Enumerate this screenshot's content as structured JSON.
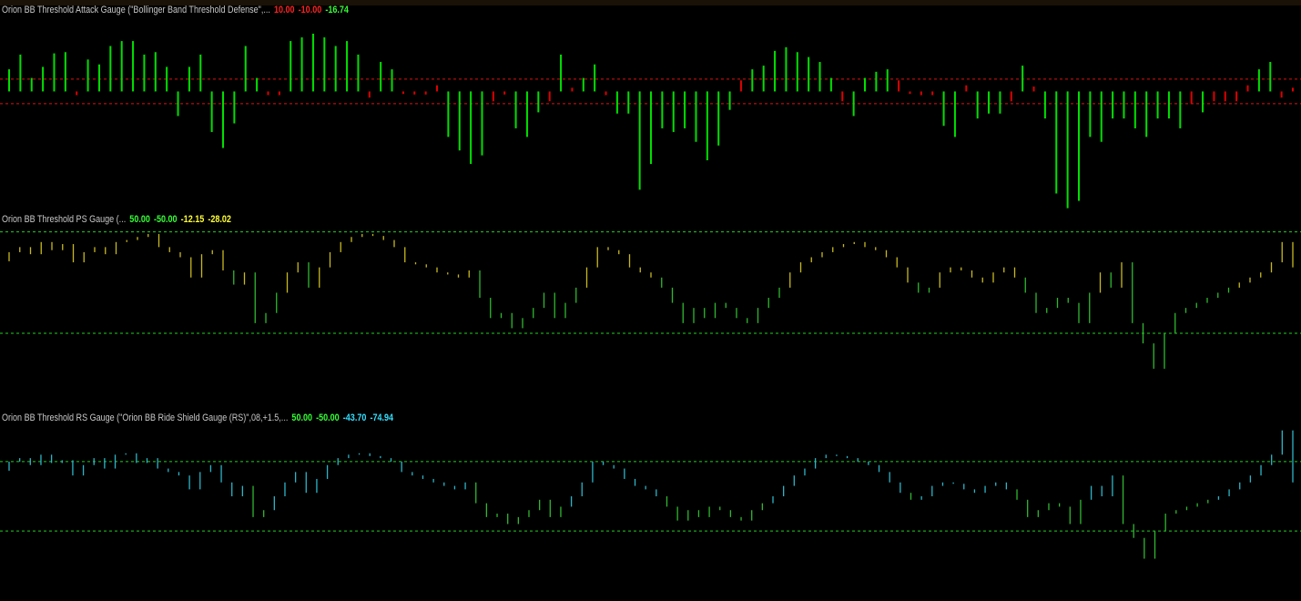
{
  "chart_data": [
    {
      "type": "bar",
      "title": "Orion BB Threshold Attack Gauge (\"Bollinger Band Threshold Defense\",...",
      "readouts": [
        {
          "label": "10.00",
          "color": "#ff2020"
        },
        {
          "label": "-10.00",
          "color": "#ff2020"
        },
        {
          "label": "-16.74",
          "color": "#33ff33"
        }
      ],
      "levels": [
        {
          "value": 10,
          "color": "#e01010"
        },
        {
          "value": -10,
          "color": "#e01010"
        }
      ],
      "color": "#00e000",
      "alt_color": "#e00000",
      "ylim": [
        -96,
        67
      ],
      "values": [
        18,
        30,
        11,
        20,
        31,
        32,
        -3,
        26,
        22,
        37,
        41,
        41,
        30,
        32,
        20,
        -20,
        20,
        30,
        -33,
        -46,
        -26,
        37,
        11,
        -3,
        -3,
        41,
        44,
        47,
        44,
        37,
        41,
        30,
        -5,
        24,
        18,
        -2,
        -1,
        -1,
        5,
        -37,
        -48,
        -59,
        -52,
        -8,
        -1,
        -30,
        -37,
        -17,
        -8,
        30,
        3,
        11,
        22,
        -3,
        -18,
        -18,
        -80,
        -59,
        -30,
        -33,
        -30,
        -41,
        -56,
        -44,
        -15,
        9,
        18,
        21,
        33,
        36,
        32,
        28,
        24,
        11,
        -8,
        -20,
        11,
        16,
        18,
        9,
        -2,
        -3,
        -3,
        -28,
        -37,
        5,
        -22,
        -18,
        -18,
        -8,
        21,
        4,
        -22,
        -83,
        -95,
        -89,
        -37,
        -41,
        -22,
        -22,
        -30,
        -37,
        -22,
        -22,
        -30,
        -10,
        -17,
        -8,
        -8,
        -8,
        5,
        18,
        24,
        -5,
        3
      ]
    },
    {
      "type": "segment",
      "title": "Orion BB Threshold PS Gauge (...",
      "readouts": [
        {
          "label": "50.00",
          "color": "#33ff33"
        },
        {
          "label": "-50.00",
          "color": "#33ff33"
        },
        {
          "label": "-12.15",
          "color": "#ffff33"
        },
        {
          "label": "-28.02",
          "color": "#ffff33"
        }
      ],
      "levels": [
        {
          "value": 50,
          "color": "#20d020"
        },
        {
          "value": -50,
          "color": "#20d020"
        }
      ],
      "color": "#c8b820",
      "alt_color": "#2fb82f",
      "ylim": [
        -121,
        56
      ],
      "values": [
        30,
        35,
        28,
        40,
        32,
        38,
        20,
        30,
        35,
        28,
        40,
        42,
        45,
        48,
        35,
        30,
        25,
        5,
        28,
        32,
        12,
        -2,
        10,
        -40,
        -30,
        -10,
        10,
        20,
        -5,
        15,
        30,
        40,
        45,
        48,
        46,
        42,
        35,
        20,
        18,
        15,
        10,
        8,
        5,
        12,
        -15,
        -35,
        -30,
        -45,
        -35,
        -25,
        -10,
        -35,
        -20,
        -5,
        15,
        35,
        32,
        28,
        15,
        10,
        5,
        -5,
        -20,
        -40,
        -25,
        -35,
        -20,
        -25,
        -35,
        -40,
        -25,
        -15,
        -5,
        10,
        20,
        25,
        30,
        35,
        38,
        40,
        35,
        32,
        25,
        15,
        0,
        -10,
        -5,
        10,
        15,
        12,
        5,
        0,
        10,
        15,
        5,
        -10,
        -30,
        -25,
        -15,
        -20,
        -40,
        -10,
        10,
        -5,
        20,
        -40,
        -60,
        -85,
        -50,
        -30,
        -25,
        -20,
        -15,
        -10,
        -5,
        0,
        5,
        10,
        20,
        40,
        15
      ]
    },
    {
      "type": "segment",
      "title": "Orion BB Threshold RS Gauge (\"Orion BB Ride Shield Gauge (RS)\",08,+1.5,...",
      "readouts": [
        {
          "label": "50.00",
          "color": "#33ff33"
        },
        {
          "label": "-50.00",
          "color": "#33ff33"
        },
        {
          "label": "-43.70",
          "color": "#33e0ff"
        },
        {
          "label": "-74.94",
          "color": "#33e0ff"
        }
      ],
      "levels": [
        {
          "value": 50,
          "color": "#20d020"
        },
        {
          "value": -50,
          "color": "#20d020"
        }
      ],
      "color": "#2bb5c8",
      "alt_color": "#2fb82f",
      "ylim": [
        -151,
        109
      ],
      "values": [
        50,
        55,
        45,
        60,
        48,
        52,
        30,
        45,
        55,
        40,
        60,
        62,
        48,
        55,
        40,
        35,
        30,
        10,
        35,
        45,
        20,
        0,
        15,
        -30,
        -20,
        0,
        20,
        35,
        5,
        25,
        45,
        55,
        60,
        62,
        58,
        55,
        50,
        35,
        30,
        25,
        20,
        15,
        10,
        20,
        -10,
        -30,
        -25,
        -40,
        -30,
        -20,
        -5,
        -30,
        -15,
        0,
        20,
        50,
        45,
        40,
        25,
        15,
        10,
        0,
        -15,
        -35,
        -20,
        -30,
        -15,
        -20,
        -30,
        -35,
        -20,
        -10,
        0,
        15,
        30,
        40,
        55,
        60,
        58,
        55,
        50,
        45,
        35,
        20,
        5,
        -5,
        0,
        15,
        20,
        18,
        10,
        5,
        15,
        20,
        10,
        -5,
        -30,
        -20,
        -10,
        -15,
        -40,
        -5,
        15,
        0,
        30,
        -40,
        -60,
        -90,
        -50,
        -25,
        -20,
        -15,
        -10,
        -5,
        0,
        10,
        20,
        30,
        45,
        60,
        95,
        20
      ]
    }
  ]
}
